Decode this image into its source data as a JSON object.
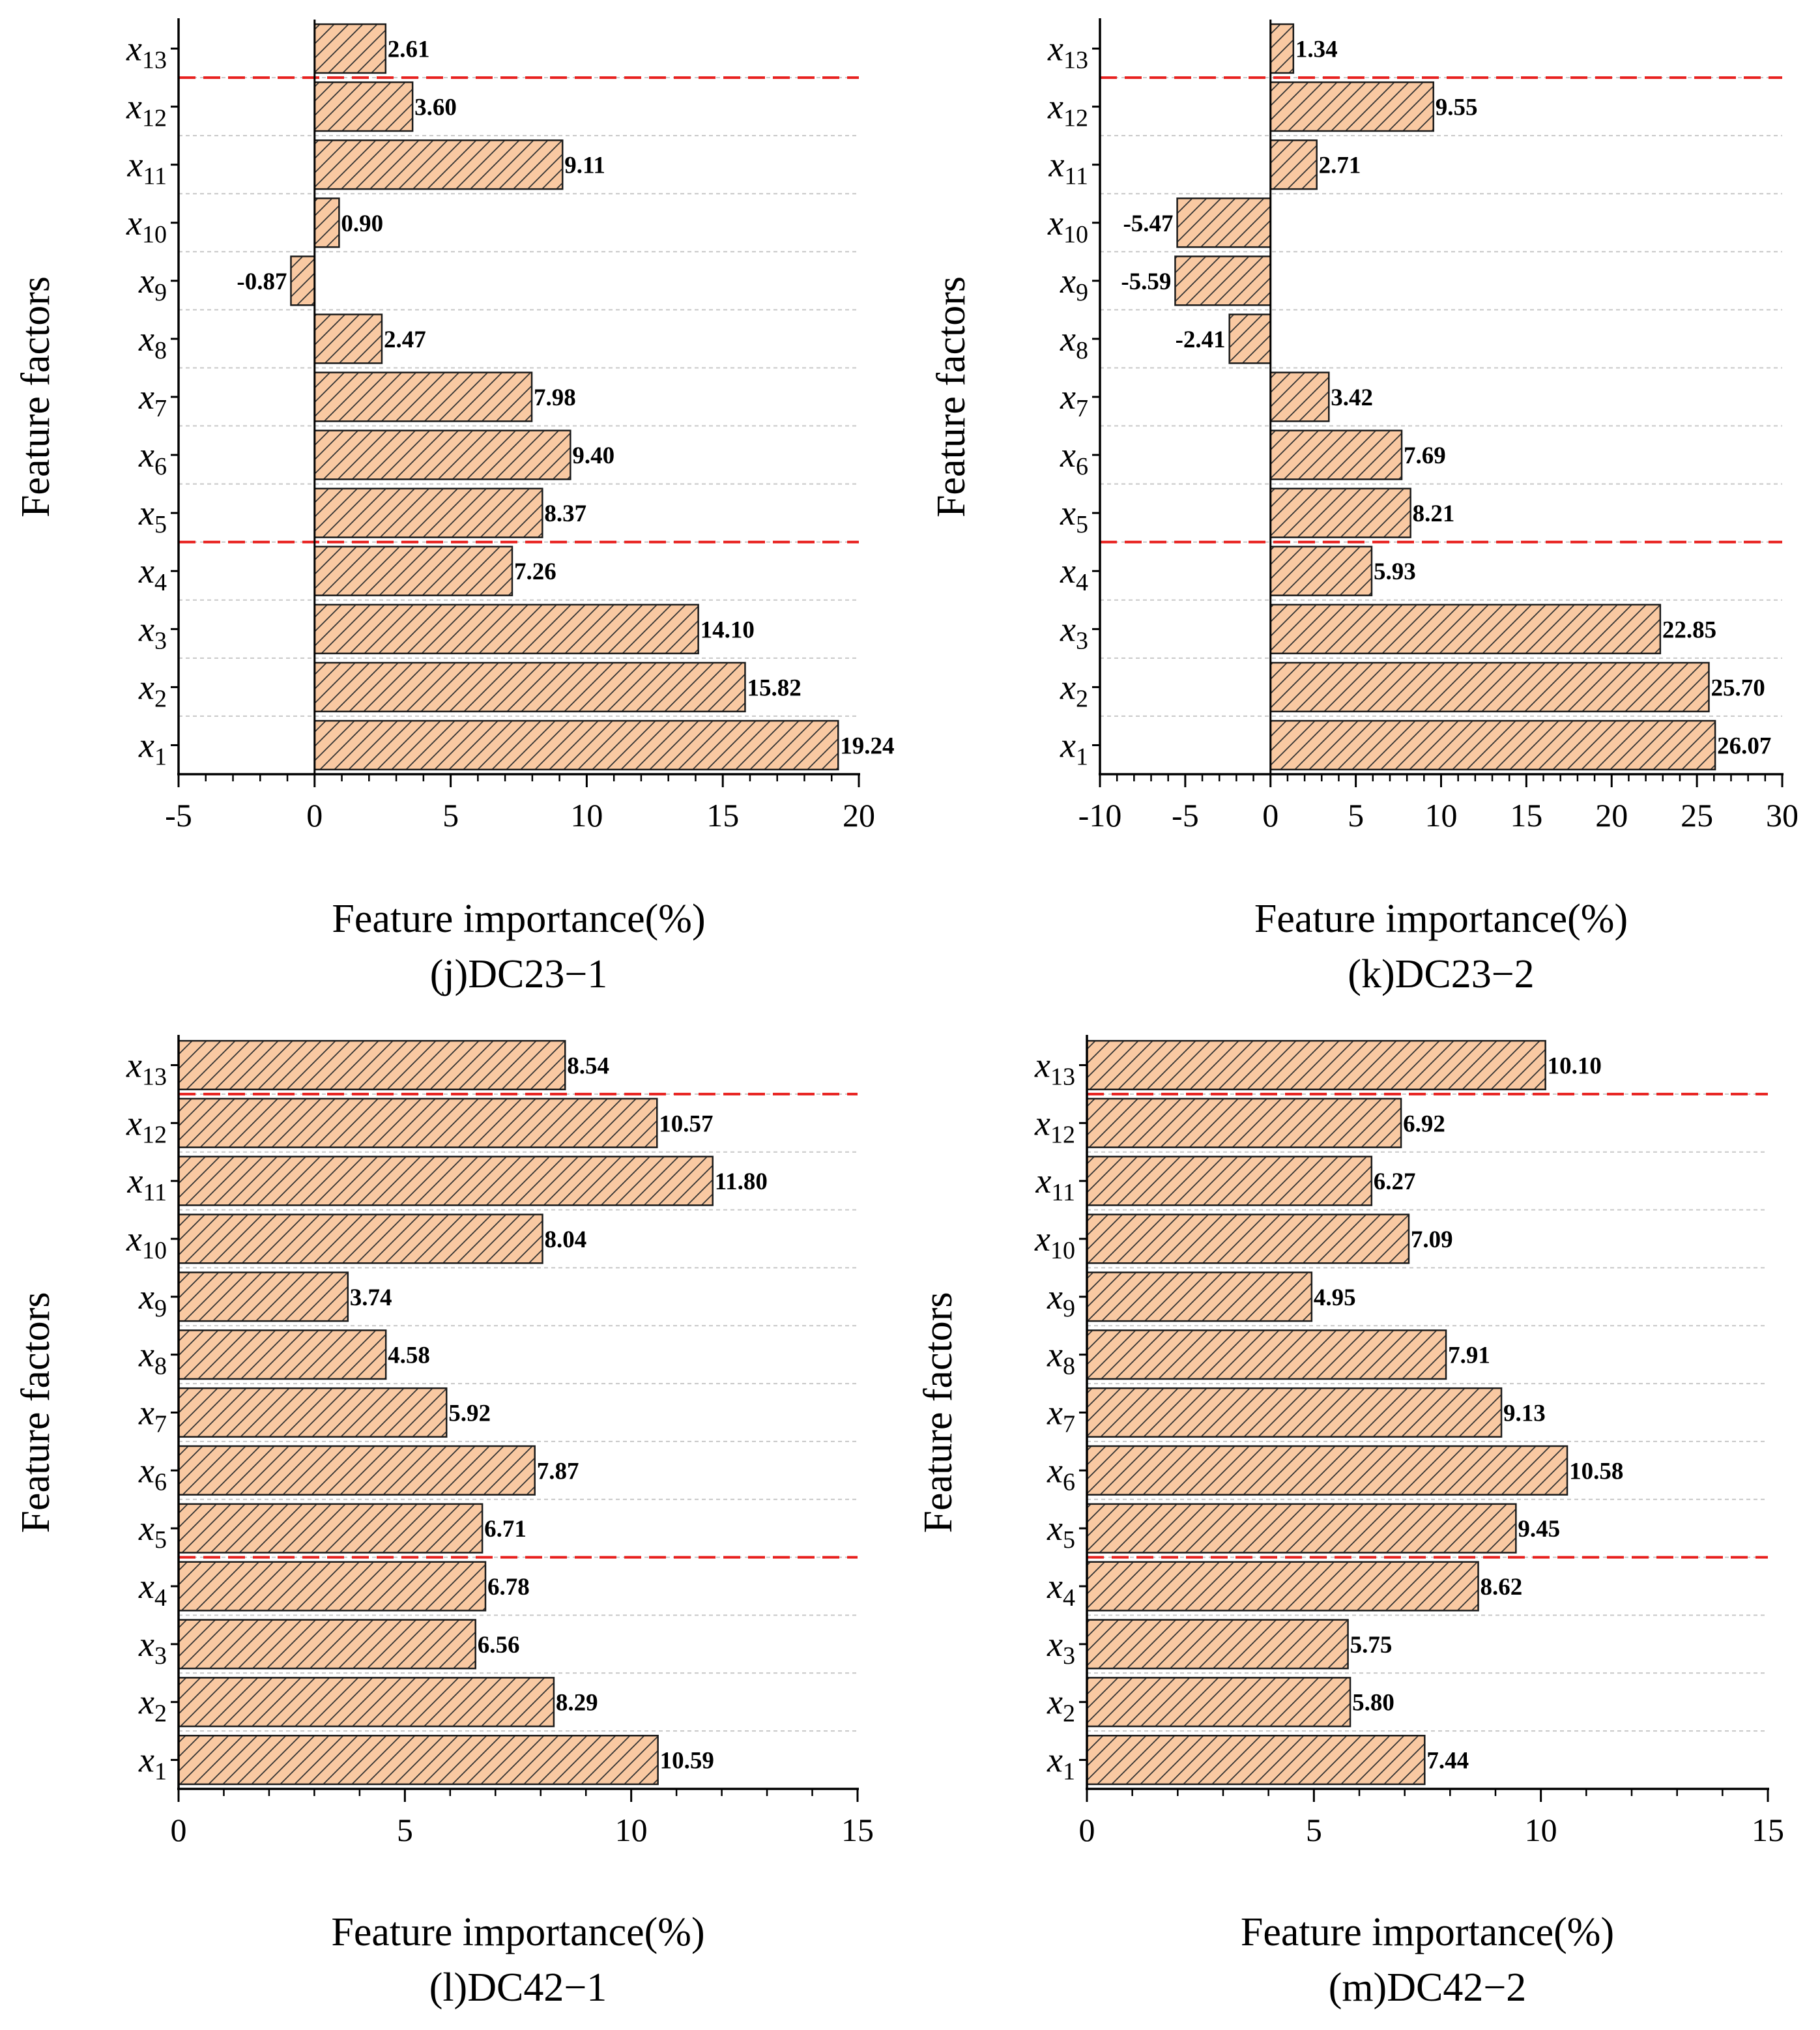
{
  "colors": {
    "bar_fill": "#F9C9A2",
    "bar_stroke": "#1a1a1a",
    "hatch": "#333333",
    "threshold": "#E8201E",
    "grid": "#c8c8c8"
  },
  "chart_data": [
    {
      "type": "bar",
      "orientation": "horizontal",
      "title": "(j)DC23−1",
      "xlabel": "Feature importance(%)",
      "ylabel": "Feature factors",
      "categories": [
        "x1",
        "x2",
        "x3",
        "x4",
        "x5",
        "x6",
        "x7",
        "x8",
        "x9",
        "x10",
        "x11",
        "x12",
        "x13"
      ],
      "category_base": "x",
      "category_subscripts": [
        "1",
        "2",
        "3",
        "4",
        "5",
        "6",
        "7",
        "8",
        "9",
        "10",
        "11",
        "12",
        "13"
      ],
      "values": [
        19.24,
        15.82,
        14.1,
        7.26,
        8.37,
        9.4,
        7.98,
        2.47,
        -0.87,
        0.9,
        9.11,
        3.6,
        2.61
      ],
      "value_labels": [
        "19.24",
        "15.82",
        "14.10",
        "7.26",
        "8.37",
        "9.40",
        "7.98",
        "2.47",
        "-0.87",
        "0.90",
        "9.11",
        "3.60",
        "2.61"
      ],
      "xlim": [
        -5,
        20
      ],
      "xticks": [
        -5,
        0,
        5,
        10,
        15,
        20
      ],
      "xtick_labels": [
        "-5",
        "0",
        "5",
        "10",
        "15",
        "20"
      ],
      "minor_tick_step": 1,
      "threshold_lines_between": [
        [
          3,
          4
        ],
        [
          11,
          12
        ]
      ]
    },
    {
      "type": "bar",
      "orientation": "horizontal",
      "title": "(k)DC23−2",
      "xlabel": "Feature importance(%)",
      "ylabel": "Feature factors",
      "categories": [
        "x1",
        "x2",
        "x3",
        "x4",
        "x5",
        "x6",
        "x7",
        "x8",
        "x9",
        "x10",
        "x11",
        "x12",
        "x13"
      ],
      "category_base": "x",
      "category_subscripts": [
        "1",
        "2",
        "3",
        "4",
        "5",
        "6",
        "7",
        "8",
        "9",
        "10",
        "11",
        "12",
        "13"
      ],
      "values": [
        26.07,
        25.7,
        22.85,
        5.93,
        8.21,
        7.69,
        3.42,
        -2.41,
        -5.59,
        -5.47,
        2.71,
        9.55,
        1.34
      ],
      "value_labels": [
        "26.07",
        "25.70",
        "22.85",
        "5.93",
        "8.21",
        "7.69",
        "3.42",
        "-2.41",
        "-5.59",
        "-5.47",
        "2.71",
        "9.55",
        "1.34"
      ],
      "xlim": [
        -10,
        30
      ],
      "xticks": [
        -10,
        -5,
        0,
        5,
        10,
        15,
        20,
        25,
        30
      ],
      "xtick_labels": [
        "-10",
        "-5",
        "0",
        "5",
        "10",
        "15",
        "20",
        "25",
        "30"
      ],
      "minor_tick_step": 1,
      "threshold_lines_between": [
        [
          3,
          4
        ],
        [
          11,
          12
        ]
      ]
    },
    {
      "type": "bar",
      "orientation": "horizontal",
      "title": "(l)DC42−1",
      "xlabel": "Feature importance(%)",
      "ylabel": "Feature factors",
      "categories": [
        "x1",
        "x2",
        "x3",
        "x4",
        "x5",
        "x6",
        "x7",
        "x8",
        "x9",
        "x10",
        "x11",
        "x12",
        "x13"
      ],
      "category_base": "x",
      "category_subscripts": [
        "1",
        "2",
        "3",
        "4",
        "5",
        "6",
        "7",
        "8",
        "9",
        "10",
        "11",
        "12",
        "13"
      ],
      "values": [
        10.59,
        8.29,
        6.56,
        6.78,
        6.71,
        7.87,
        5.92,
        4.58,
        3.74,
        8.04,
        11.8,
        10.57,
        8.54
      ],
      "value_labels": [
        "10.59",
        "8.29",
        "6.56",
        "6.78",
        "6.71",
        "7.87",
        "5.92",
        "4.58",
        "3.74",
        "8.04",
        "11.80",
        "10.57",
        "8.54"
      ],
      "xlim": [
        0,
        15
      ],
      "xticks": [
        0,
        5,
        10,
        15
      ],
      "xtick_labels": [
        "0",
        "5",
        "10",
        "15"
      ],
      "minor_tick_step": 1,
      "threshold_lines_between": [
        [
          3,
          4
        ],
        [
          11,
          12
        ]
      ]
    },
    {
      "type": "bar",
      "orientation": "horizontal",
      "title": "(m)DC42−2",
      "xlabel": "Feature importance(%)",
      "ylabel": "Feature factors",
      "categories": [
        "x1",
        "x2",
        "x3",
        "x4",
        "x5",
        "x6",
        "x7",
        "x8",
        "x9",
        "x10",
        "x11",
        "x12",
        "x13"
      ],
      "category_base": "x",
      "category_subscripts": [
        "1",
        "2",
        "3",
        "4",
        "5",
        "6",
        "7",
        "8",
        "9",
        "10",
        "11",
        "12",
        "13"
      ],
      "values": [
        7.44,
        5.8,
        5.75,
        8.62,
        9.45,
        10.58,
        9.13,
        7.91,
        4.95,
        7.09,
        6.27,
        6.92,
        10.1
      ],
      "value_labels": [
        "7.44",
        "5.80",
        "5.75",
        "8.62",
        "9.45",
        "10.58",
        "9.13",
        "7.91",
        "4.95",
        "7.09",
        "6.27",
        "6.92",
        "10.10"
      ],
      "xlim": [
        0,
        15
      ],
      "xticks": [
        0,
        5,
        10,
        15
      ],
      "xtick_labels": [
        "0",
        "5",
        "10",
        "15"
      ],
      "minor_tick_step": 1,
      "threshold_lines_between": [
        [
          3,
          4
        ],
        [
          11,
          12
        ]
      ]
    }
  ]
}
